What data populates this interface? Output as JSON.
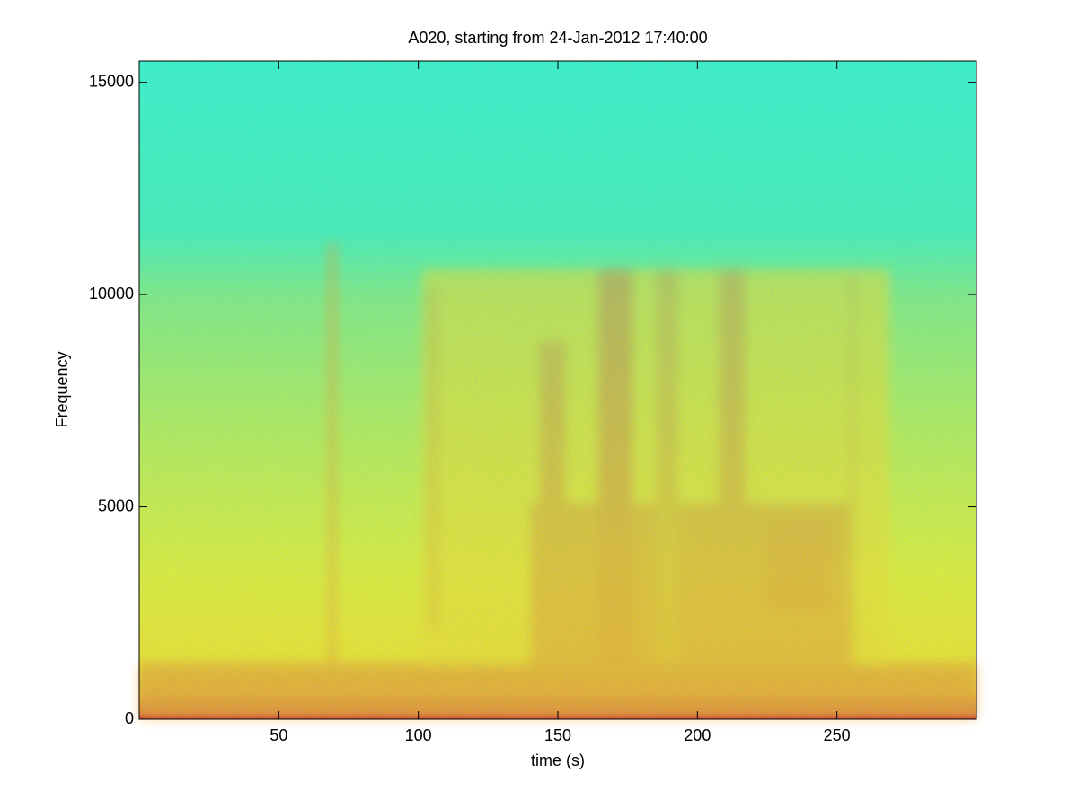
{
  "chart_data": {
    "type": "spectrogram",
    "title": "A020, starting from 24-Jan-2012 17:40:00",
    "xlabel": "time (s)",
    "ylabel": "Frequency",
    "xlim": [
      0,
      300
    ],
    "ylim": [
      0,
      15500
    ],
    "xticks": [
      50,
      100,
      150,
      200,
      250
    ],
    "yticks": [
      0,
      5000,
      10000,
      15000
    ]
  }
}
